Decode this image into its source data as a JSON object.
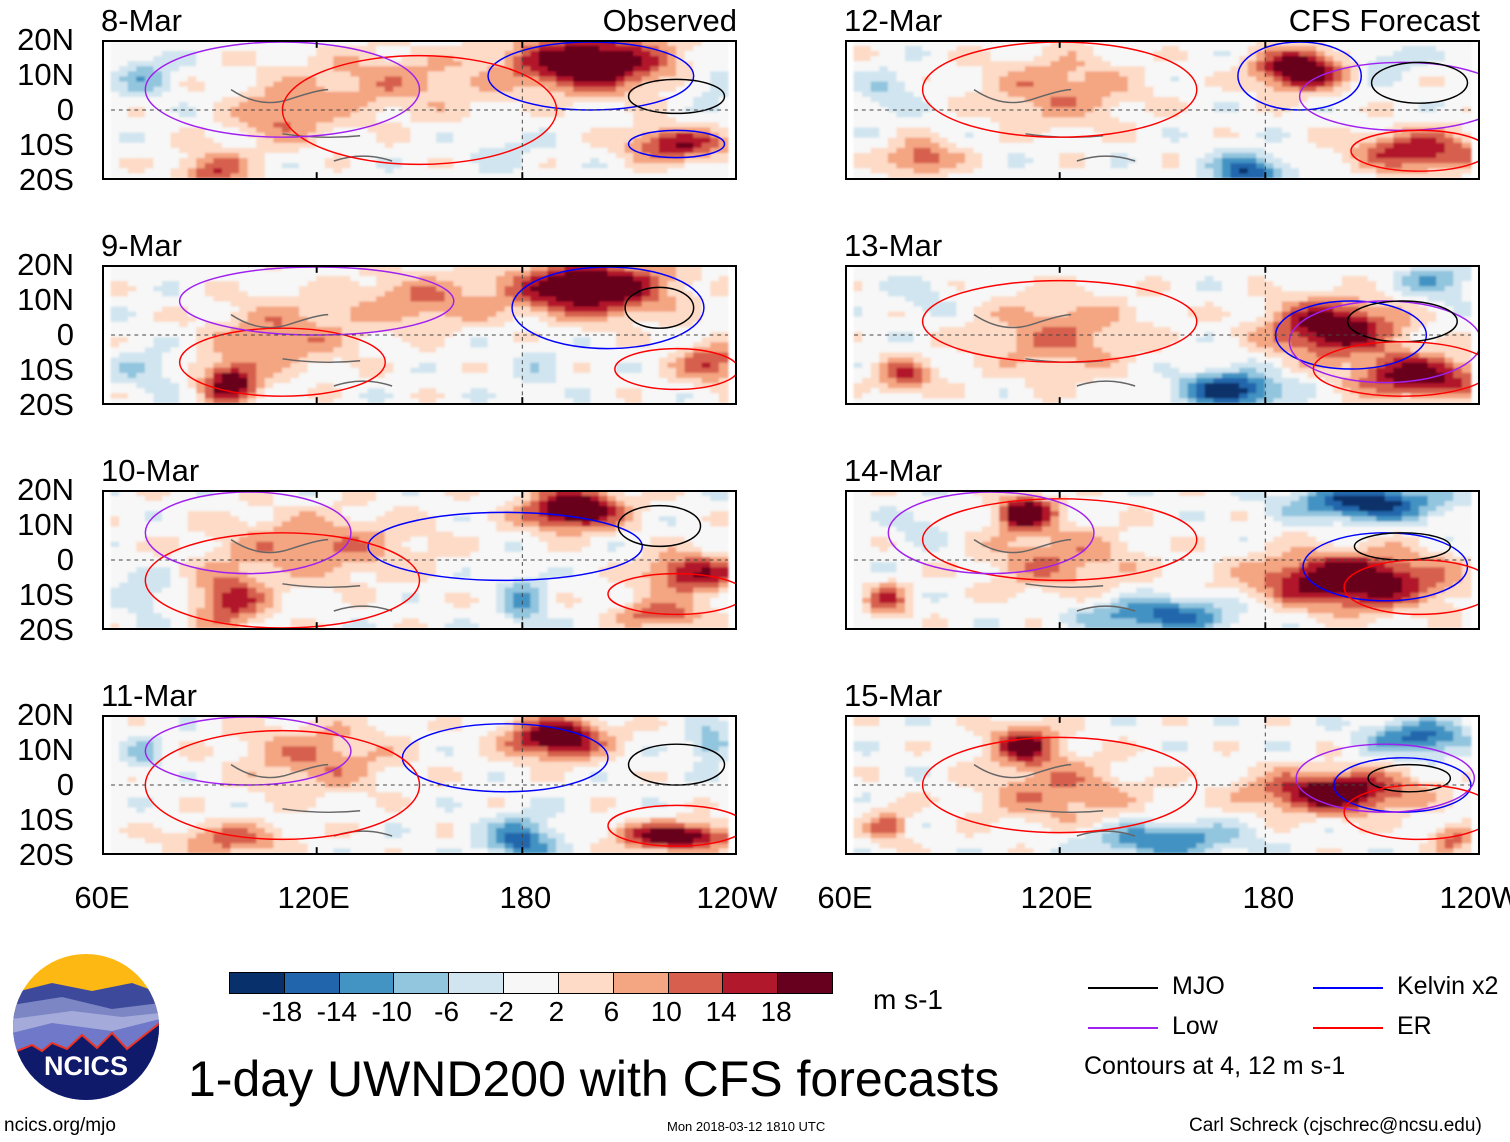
{
  "title": "1-day UWND200 with CFS forecasts",
  "columns": {
    "left_label": "Observed",
    "right_label": "CFS Forecast"
  },
  "panels": [
    {
      "date": "8-Mar",
      "column": "observed"
    },
    {
      "date": "9-Mar",
      "column": "observed"
    },
    {
      "date": "10-Mar",
      "column": "observed"
    },
    {
      "date": "11-Mar",
      "column": "observed"
    },
    {
      "date": "12-Mar",
      "column": "forecast"
    },
    {
      "date": "13-Mar",
      "column": "forecast"
    },
    {
      "date": "14-Mar",
      "column": "forecast"
    },
    {
      "date": "15-Mar",
      "column": "forecast"
    }
  ],
  "lat_labels": [
    "20N",
    "10N",
    "0",
    "10S",
    "20S"
  ],
  "lon_labels": [
    "60E",
    "120E",
    "180",
    "120W"
  ],
  "colorbar": {
    "unit": "m s-1",
    "labels": [
      "-18",
      "-14",
      "-10",
      "-6",
      "-2",
      "2",
      "6",
      "10",
      "14",
      "18"
    ],
    "colors": [
      "#08306b",
      "#2166ac",
      "#4393c3",
      "#92c5de",
      "#d1e5f0",
      "#f7f7f7",
      "#fddbc7",
      "#f4a582",
      "#d6604d",
      "#b2182b",
      "#67001f"
    ]
  },
  "legend": {
    "items": [
      {
        "label": "MJO",
        "color": "#000000"
      },
      {
        "label": "Kelvin x2",
        "color": "#0000ff"
      },
      {
        "label": "Low",
        "color": "#a020f0"
      },
      {
        "label": "ER",
        "color": "#ff0000"
      }
    ],
    "note": "Contours at 4, 12 m s-1"
  },
  "logo": {
    "text": "NCICS"
  },
  "footer": {
    "url": "ncics.org/mjo",
    "timestamp": "Mon 2018-03-12 1810 UTC",
    "credit": "Carl Schreck (cjschrec@ncsu.edu)"
  }
}
